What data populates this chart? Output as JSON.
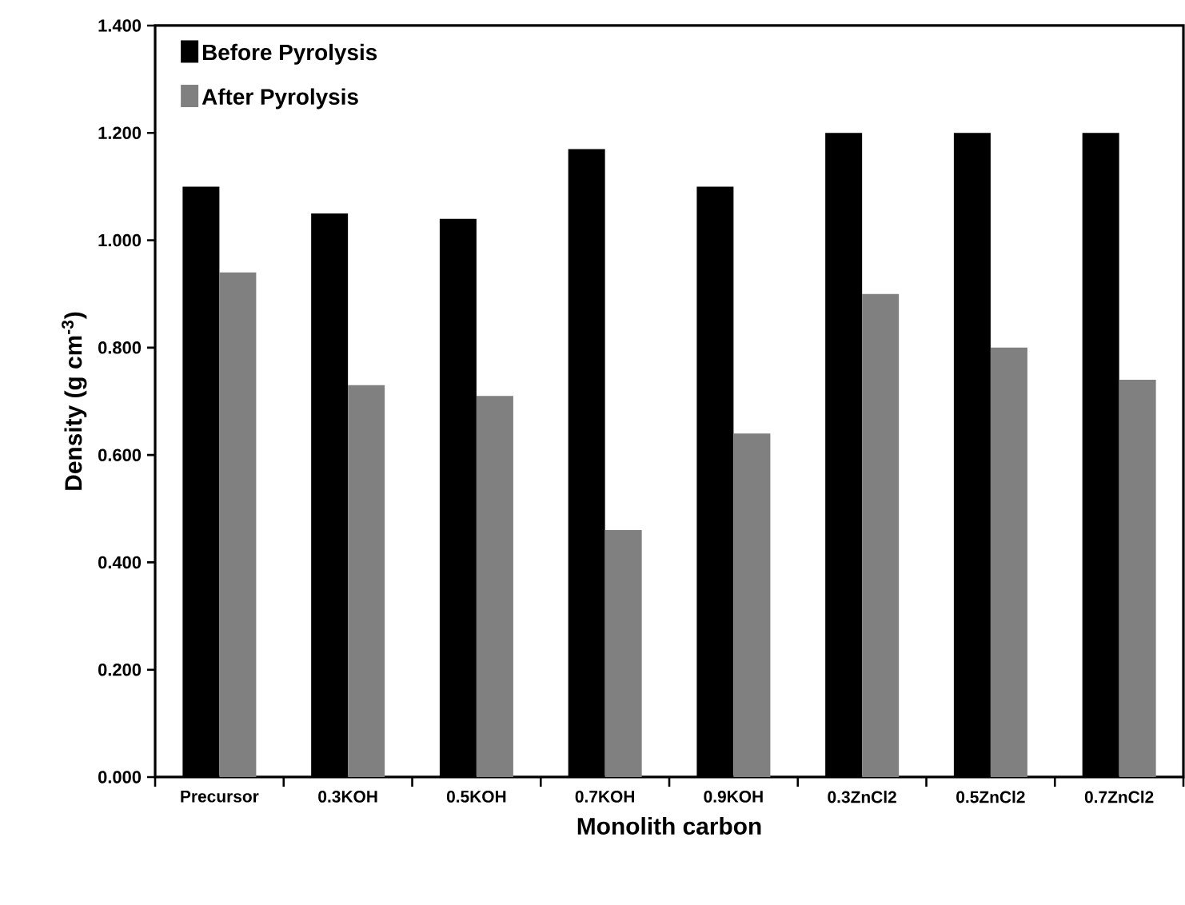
{
  "chart_data": {
    "type": "bar",
    "xlabel": "Monolith carbon",
    "ylabel": "Density (g cm$^{-3}$)",
    "categories": [
      "Precursor",
      "0.3KOH",
      "0.5KOH",
      "0.7KOH",
      "0.9KOH",
      "0.3ZnCl2",
      "0.5ZnCl2",
      "0.7ZnCl2"
    ],
    "series": [
      {
        "name": "Before Pyrolysis",
        "color": "#000000",
        "values": [
          1.1,
          1.05,
          1.04,
          1.17,
          1.1,
          1.2,
          1.2,
          1.2
        ]
      },
      {
        "name": "After Pyrolysis",
        "color": "#808080",
        "values": [
          0.94,
          0.73,
          0.71,
          0.46,
          0.64,
          0.9,
          0.8,
          0.74
        ]
      }
    ],
    "ylim": [
      0,
      1.4
    ],
    "yticks": [
      {
        "value": 0,
        "label": "0.000"
      },
      {
        "value": 0.2,
        "label": "0.200"
      },
      {
        "value": 0.4,
        "label": "0.400"
      },
      {
        "value": 0.6,
        "label": "0.600"
      },
      {
        "value": 0.8,
        "label": "0.800"
      },
      {
        "value": 1.0,
        "label": "1.000"
      },
      {
        "value": 1.2,
        "label": "1.200"
      },
      {
        "value": 1.4,
        "label": "1.400"
      }
    ],
    "legend": "top left",
    "grid": false
  }
}
